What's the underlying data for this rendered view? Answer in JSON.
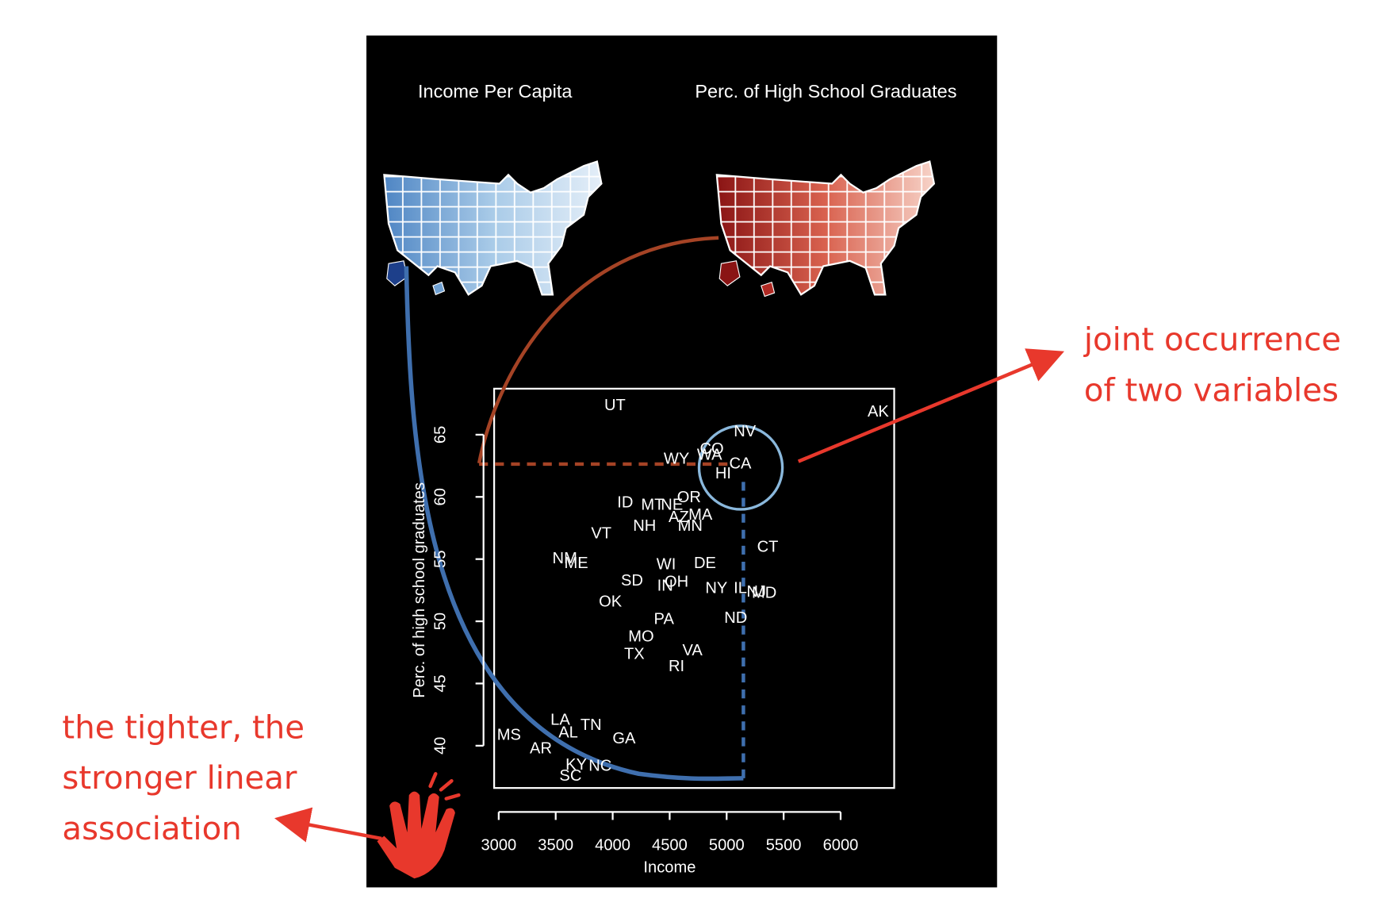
{
  "chart_data": {
    "type": "scatter",
    "map_titles": [
      "Income Per Capita",
      "Perc. of High School Graduates"
    ],
    "xlabel": "Income",
    "ylabel": "Perc. of high school graduates",
    "labels": [
      "UT",
      "AK",
      "NV",
      "CO",
      "WA",
      "WY",
      "CA",
      "HI",
      "ID",
      "MT",
      "NE",
      "OR",
      "AZ",
      "MA",
      "NH",
      "MN",
      "VT",
      "CT",
      "NM",
      "ME",
      "WI",
      "DE",
      "SD",
      "IN",
      "OH",
      "NY",
      "IL",
      "NJ",
      "MD",
      "OK",
      "ND",
      "PA",
      "MO",
      "TX",
      "VA",
      "RI",
      "LA",
      "AL",
      "TN",
      "MS",
      "AR",
      "GA",
      "KY",
      "NC",
      "SC"
    ],
    "x": [
      4020,
      6330,
      5160,
      4870,
      4850,
      4560,
      5120,
      4970,
      4110,
      4350,
      4520,
      4670,
      4580,
      4770,
      4280,
      4680,
      3900,
      5360,
      3580,
      3680,
      4470,
      4810,
      4170,
      4460,
      4560,
      4910,
      5120,
      5260,
      5330,
      3980,
      5080,
      4450,
      4250,
      4190,
      4700,
      4560,
      3540,
      3610,
      3810,
      3090,
      3370,
      4100,
      3680,
      3890,
      3630
    ],
    "values": [
      67.4,
      66.9,
      65.3,
      63.9,
      63.4,
      63.1,
      62.7,
      61.9,
      59.6,
      59.4,
      59.4,
      60.0,
      58.4,
      58.6,
      57.7,
      57.7,
      57.1,
      56.0,
      55.1,
      54.7,
      54.6,
      54.7,
      53.3,
      52.9,
      53.2,
      52.7,
      52.7,
      52.4,
      52.3,
      51.6,
      50.3,
      50.2,
      48.8,
      47.4,
      47.7,
      46.4,
      42.1,
      41.1,
      41.7,
      40.9,
      39.8,
      40.6,
      38.5,
      38.4,
      37.6
    ],
    "color": "#ffffff",
    "xlim": [
      2960,
      6470
    ],
    "ylim": [
      36.6,
      68.7
    ],
    "xticks": [
      3000,
      3500,
      4000,
      4500,
      5000,
      5500,
      6000
    ],
    "yticks": [
      40,
      45,
      50,
      55,
      60,
      65
    ],
    "annotations": [
      [
        "joint occurrence",
        "of two variables"
      ],
      [
        "the tighter, the",
        "stronger linear",
        "association"
      ]
    ]
  }
}
